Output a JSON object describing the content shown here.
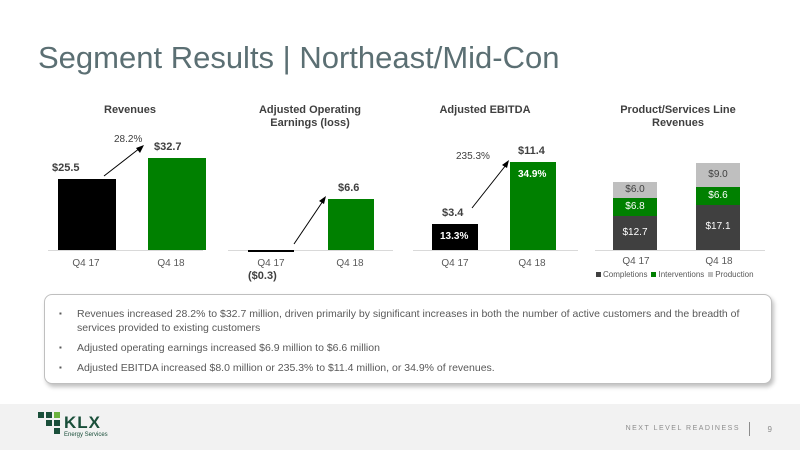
{
  "slide": {
    "title": "Segment Results | Northeast/Mid-Con"
  },
  "colors": {
    "black": "#000000",
    "green": "#008000",
    "dark_gray": "#404040",
    "light_gray": "#bfbfbf"
  },
  "chart_data": [
    {
      "type": "bar",
      "title": "Revenues",
      "categories": [
        "Q4 17",
        "Q4 18"
      ],
      "values": [
        25.5,
        32.7
      ],
      "value_labels": [
        "$25.5",
        "$32.7"
      ],
      "bar_colors": [
        "#000000",
        "#008000"
      ],
      "annotation": "28.2%"
    },
    {
      "type": "bar",
      "title": "Adjusted Operating Earnings (loss)",
      "categories": [
        "Q4 17",
        "Q4 18"
      ],
      "values": [
        -0.3,
        6.6
      ],
      "value_labels": [
        "($0.3)",
        "$6.6"
      ],
      "bar_colors": [
        "#000000",
        "#008000"
      ]
    },
    {
      "type": "bar",
      "title": "Adjusted EBITDA",
      "categories": [
        "Q4 17",
        "Q4 18"
      ],
      "values": [
        3.4,
        11.4
      ],
      "value_labels": [
        "$3.4",
        "$11.4"
      ],
      "margin_labels": [
        "13.3%",
        "34.9%"
      ],
      "bar_colors": [
        "#000000",
        "#008000"
      ],
      "annotation": "235.3%"
    },
    {
      "type": "bar",
      "stacked": true,
      "title": "Product/Services Line Revenues",
      "categories": [
        "Q4 17",
        "Q4 18"
      ],
      "series": [
        {
          "name": "Completions",
          "values": [
            12.7,
            17.1
          ],
          "labels": [
            "$12.7",
            "$17.1"
          ],
          "color": "#404040"
        },
        {
          "name": "Interventions",
          "values": [
            6.8,
            6.6
          ],
          "labels": [
            "$6.8",
            "$6.6"
          ],
          "color": "#008000"
        },
        {
          "name": "Production",
          "values": [
            6.0,
            9.0
          ],
          "labels": [
            "$6.0",
            "$9.0"
          ],
          "color": "#bfbfbf"
        }
      ],
      "legend_position": "bottom"
    }
  ],
  "bullets": [
    "Revenues increased 28.2% to $32.7 million, driven primarily by significant increases in both the number of active customers and the breadth of services provided to existing customers",
    "Adjusted operating earnings increased $6.9 million to $6.6 million",
    "Adjusted EBITDA increased $8.0 million or 235.3% to $11.4 million, or 34.9% of revenues."
  ],
  "footer": {
    "logo_text": "KLX",
    "logo_sub": "Energy Services",
    "tagline": "NEXT LEVEL READINESS",
    "page_number": "9"
  }
}
